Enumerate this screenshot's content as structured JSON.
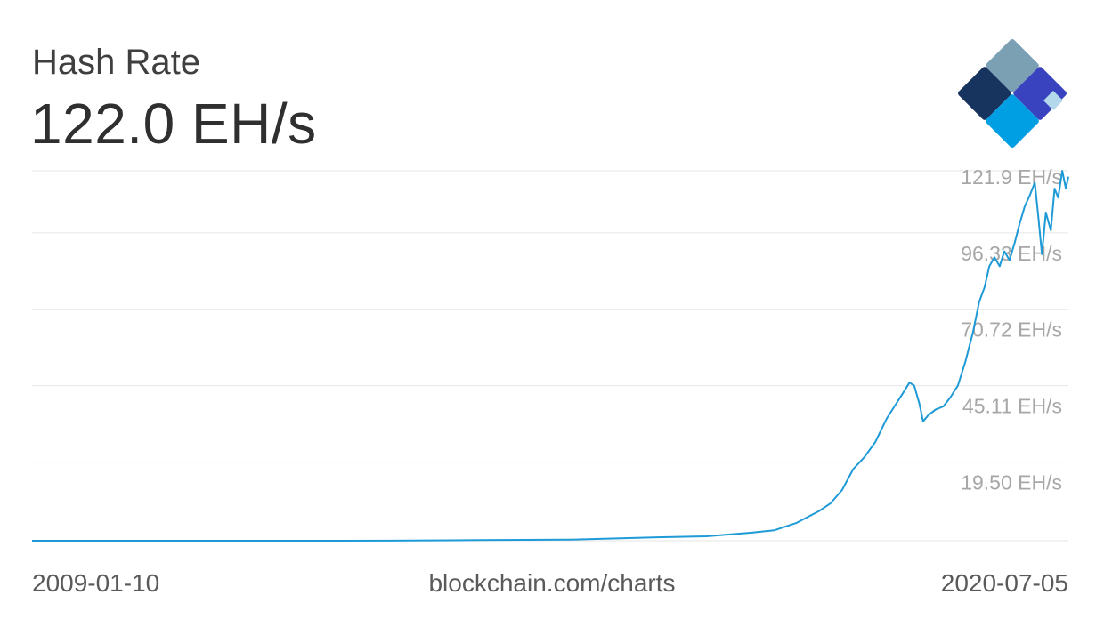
{
  "header": {
    "title": "Hash Rate",
    "current_value": "122.0 EH/s"
  },
  "footer": {
    "start_date": "2009-01-10",
    "source": "blockchain.com/charts",
    "end_date": "2020-07-05"
  },
  "logo": {
    "colors": [
      "#7ba0b4",
      "#16345e",
      "#3a43bf",
      "#009fe3",
      "#b3d8eb"
    ]
  },
  "chart_data": {
    "type": "line",
    "title": "Hash Rate",
    "xlabel": "",
    "ylabel": "",
    "x_range": [
      "2009-01-10",
      "2020-07-05"
    ],
    "ylim": [
      0,
      124
    ],
    "y_ticks": [
      19.5,
      45.11,
      70.72,
      96.33,
      121.9
    ],
    "y_tick_labels": [
      "19.50 EH/s",
      "45.11 EH/s",
      "70.72 EH/s",
      "96.33 EH/s",
      "121.9 EH/s"
    ],
    "grid": true,
    "line_color": "#1e9ad6",
    "series": [
      {
        "x": [
          "2009-01-10",
          "2010-01-01",
          "2011-01-01",
          "2012-01-01",
          "2013-01-01",
          "2014-01-01",
          "2015-01-01",
          "2016-01-01",
          "2016-07-01",
          "2017-01-01",
          "2017-04-01",
          "2017-07-01",
          "2017-10-01",
          "2017-11-15",
          "2018-01-01",
          "2018-02-15",
          "2018-04-01",
          "2018-05-15",
          "2018-07-01",
          "2018-08-01",
          "2018-09-01",
          "2018-10-01",
          "2018-10-20",
          "2018-11-10",
          "2018-11-25",
          "2018-12-15",
          "2019-01-15",
          "2019-02-15",
          "2019-03-15",
          "2019-04-15",
          "2019-05-15",
          "2019-06-15",
          "2019-07-10",
          "2019-08-01",
          "2019-08-20",
          "2019-09-10",
          "2019-10-01",
          "2019-10-20",
          "2019-11-10",
          "2019-12-01",
          "2019-12-20",
          "2020-01-10",
          "2020-02-01",
          "2020-02-20",
          "2020-03-05",
          "2020-03-20",
          "2020-04-05",
          "2020-04-25",
          "2020-05-10",
          "2020-05-25",
          "2020-06-10",
          "2020-06-25",
          "2020-07-05"
        ],
        "y": [
          0,
          0,
          0,
          0,
          0.02,
          0.2,
          0.4,
          1.2,
          1.5,
          2.7,
          3.5,
          6,
          10,
          12.5,
          17,
          24,
          28,
          33,
          41,
          45,
          49,
          53,
          52,
          46,
          40,
          42,
          44,
          45,
          48,
          52,
          60,
          70,
          80,
          85,
          92,
          95,
          92,
          97,
          94,
          100,
          106,
          112,
          116,
          120,
          109,
          96,
          110,
          104,
          118,
          115,
          124,
          118,
          122
        ]
      }
    ]
  }
}
